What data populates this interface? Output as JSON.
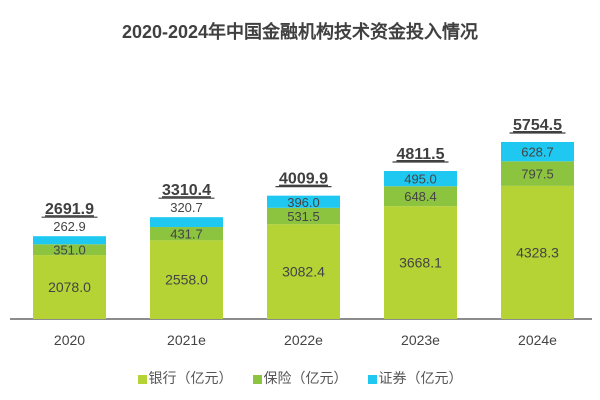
{
  "chart_data": {
    "type": "bar",
    "stacked": true,
    "title": "2020-2024年中国金融机构技术资金投入情况",
    "categories": [
      "2020",
      "2021e",
      "2022e",
      "2023e",
      "2024e"
    ],
    "series": [
      {
        "name": "银行（亿元）",
        "color": "#b5d334",
        "values": [
          2078.0,
          2558.0,
          3082.4,
          3668.1,
          4328.3
        ]
      },
      {
        "name": "保险（亿元）",
        "color": "#8cc43f",
        "values": [
          351.0,
          431.7,
          531.5,
          648.4,
          797.5
        ]
      },
      {
        "name": "证券（亿元）",
        "color": "#1ec8f0",
        "values": [
          262.9,
          320.7,
          396.0,
          495.0,
          628.7
        ]
      }
    ],
    "totals": [
      "2691.9",
      "3310.4",
      "4009.9",
      "4811.5",
      "5754.5"
    ],
    "labels": [
      [
        "2078.0",
        "351.0",
        "262.9"
      ],
      [
        "2558.0",
        "431.7",
        "320.7"
      ],
      [
        "3082.4",
        "531.5",
        "396.0"
      ],
      [
        "3668.1",
        "648.4",
        "495.0"
      ],
      [
        "4328.3",
        "797.5",
        "628.7"
      ]
    ],
    "legend_position": "bottom",
    "grid": false
  }
}
